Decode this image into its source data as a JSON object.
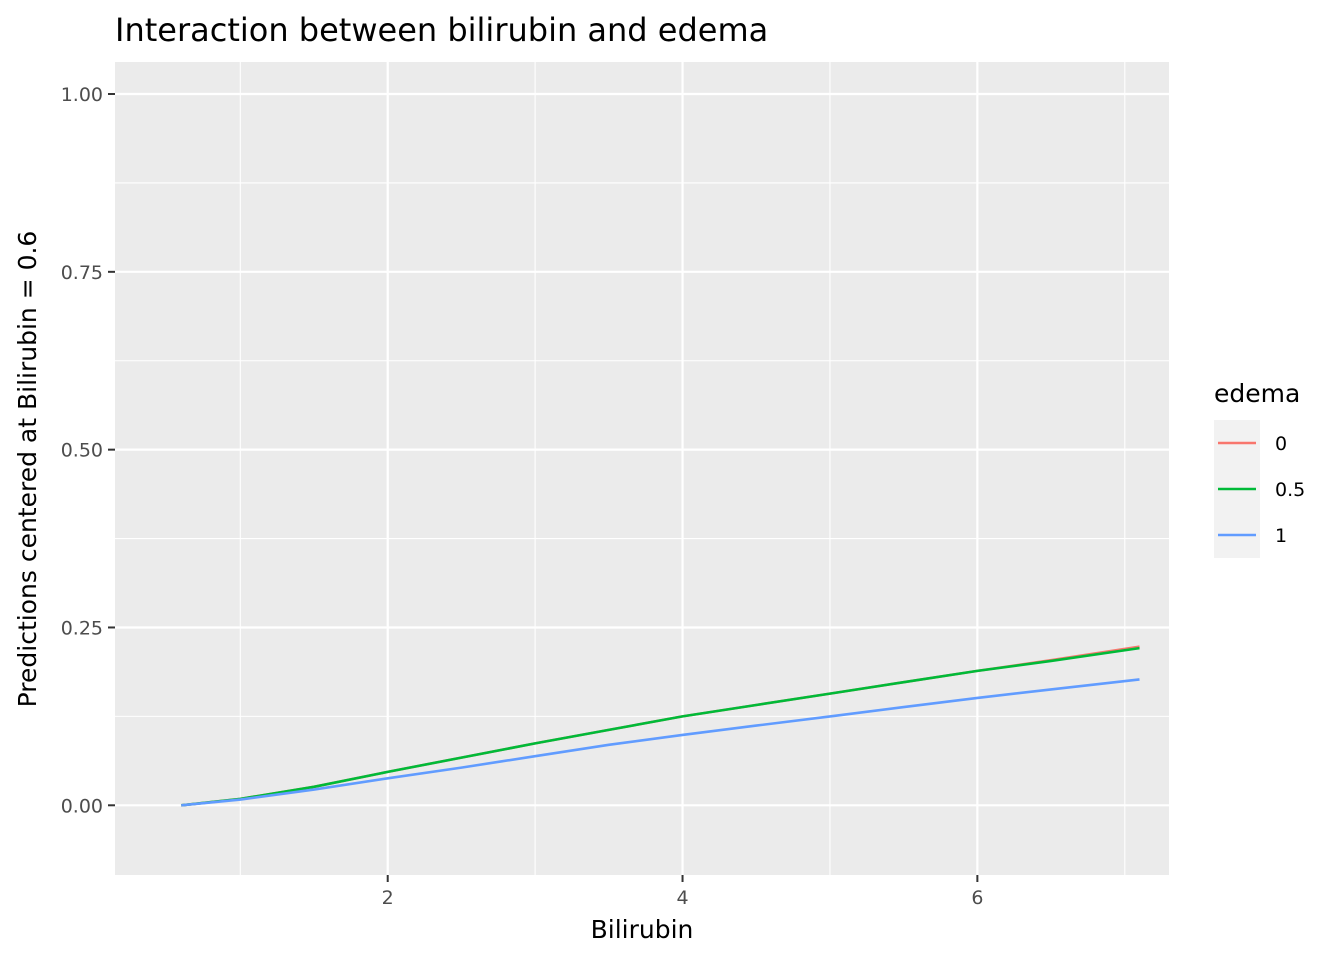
{
  "chart_data": {
    "type": "line",
    "title": "Interaction between bilirubin and edema",
    "xlabel": "Bilirubin",
    "ylabel": "Predictions centered at Bilirubin = 0.6",
    "xlim": [
      0.15,
      7.3
    ],
    "ylim": [
      -0.098,
      1.045
    ],
    "x_ticks": [
      2,
      4,
      6
    ],
    "x_tick_labels": [
      "2",
      "4",
      "6"
    ],
    "y_ticks": [
      0.0,
      0.25,
      0.5,
      0.75,
      1.0
    ],
    "y_tick_labels": [
      "0.00",
      "0.25",
      "0.50",
      "0.75",
      "1.00"
    ],
    "grid": true,
    "legend": {
      "title": "edema",
      "position": "right"
    },
    "series": [
      {
        "name": "0",
        "color": "#F8766D",
        "x": [
          0.6,
          1.0,
          1.5,
          2.0,
          2.5,
          3.0,
          3.5,
          4.0,
          4.5,
          5.0,
          5.5,
          6.0,
          6.5,
          7.1
        ],
        "y": [
          0.0,
          0.009,
          0.026,
          0.047,
          0.067,
          0.087,
          0.106,
          0.125,
          0.141,
          0.157,
          0.173,
          0.189,
          0.204,
          0.223
        ]
      },
      {
        "name": "0.5",
        "color": "#00BA38",
        "x": [
          0.6,
          1.0,
          1.5,
          2.0,
          2.5,
          3.0,
          3.5,
          4.0,
          4.5,
          5.0,
          5.5,
          6.0,
          6.5,
          7.1
        ],
        "y": [
          0.0,
          0.009,
          0.026,
          0.047,
          0.067,
          0.087,
          0.106,
          0.125,
          0.141,
          0.157,
          0.173,
          0.189,
          0.203,
          0.221
        ]
      },
      {
        "name": "1",
        "color": "#619CFF",
        "x": [
          0.6,
          1.0,
          1.5,
          2.0,
          2.5,
          3.0,
          3.5,
          4.0,
          4.5,
          5.0,
          5.5,
          6.0,
          6.5,
          7.1
        ],
        "y": [
          0.0,
          0.008,
          0.022,
          0.038,
          0.053,
          0.069,
          0.085,
          0.099,
          0.112,
          0.125,
          0.138,
          0.151,
          0.163,
          0.177
        ]
      }
    ],
    "colors": {
      "panel_background": "#EBEBEB",
      "grid_line": "#FFFFFF",
      "legend_key_background": "#F2F2F2"
    }
  }
}
